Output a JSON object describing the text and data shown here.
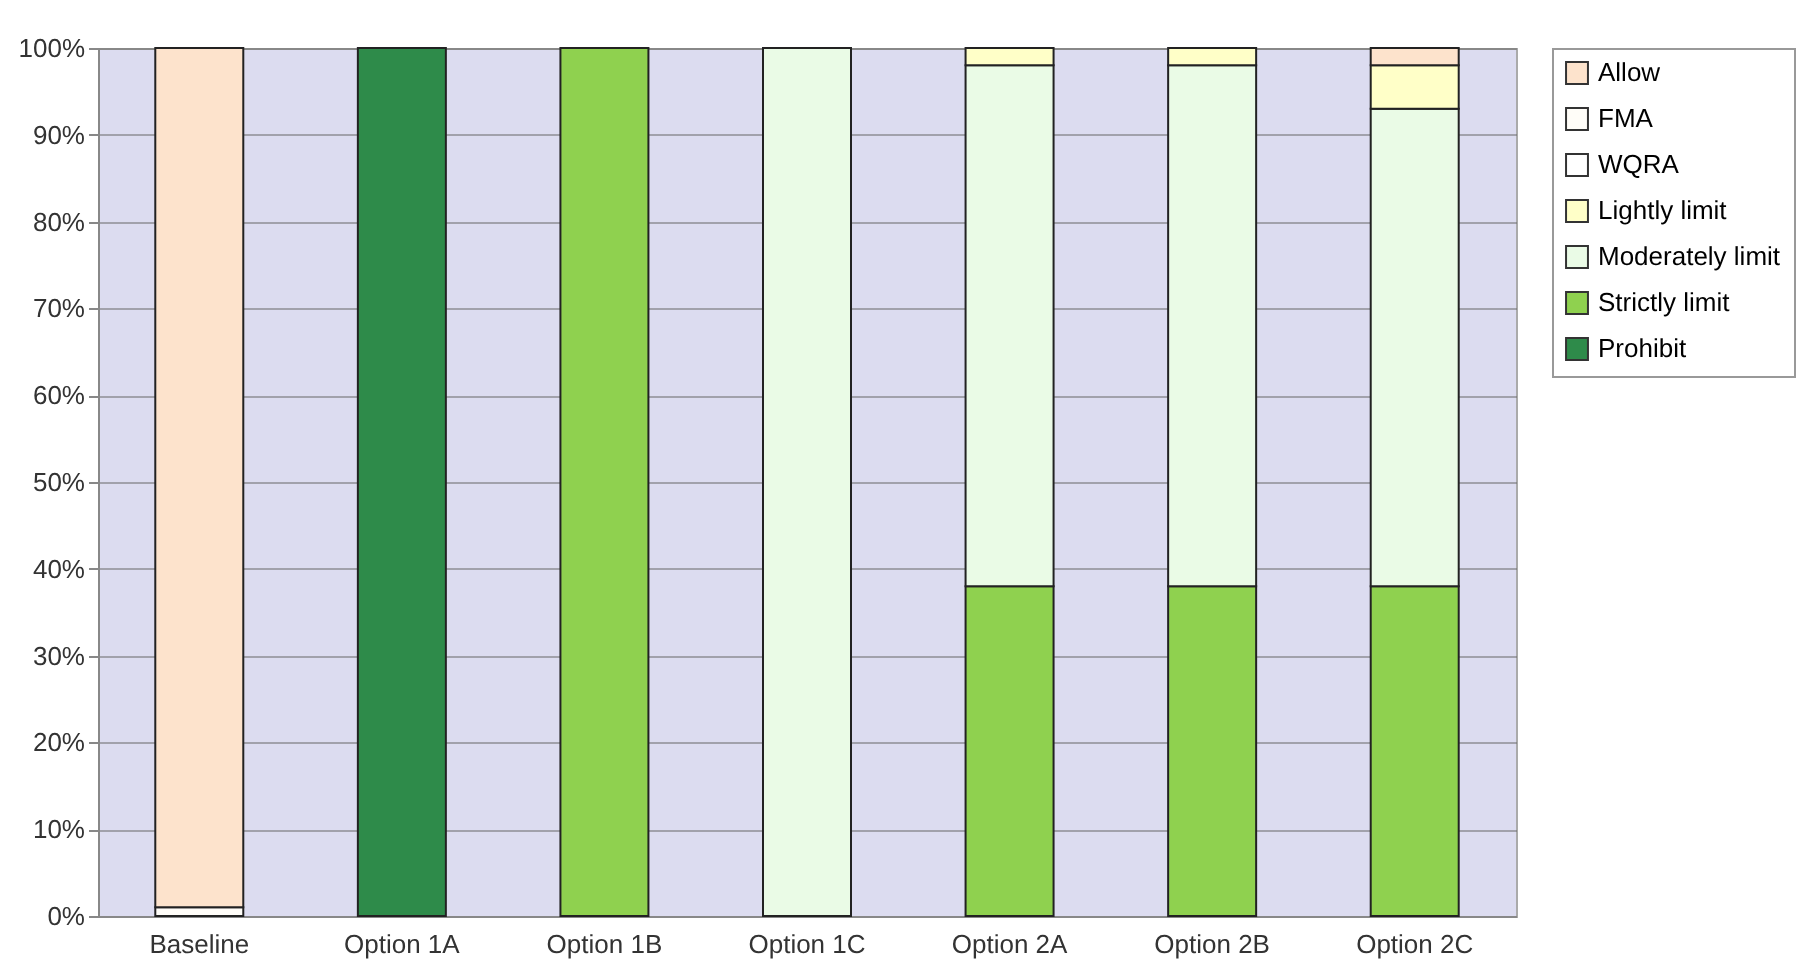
{
  "chart_data": {
    "type": "bar",
    "stacked": true,
    "categories": [
      "Baseline",
      "Option 1A",
      "Option 1B",
      "Option 1C",
      "Option 2A",
      "Option 2B",
      "Option 2C"
    ],
    "series": [
      {
        "name": "Prohibit",
        "color": "#2e8b4a",
        "values": [
          0,
          100,
          0,
          0,
          0,
          0,
          0
        ]
      },
      {
        "name": "Strictly limit",
        "color": "#8fd14f",
        "values": [
          0,
          0,
          100,
          0,
          38,
          38,
          38
        ]
      },
      {
        "name": "Moderately limit",
        "color": "#eafbe6",
        "values": [
          0,
          0,
          0,
          100,
          60,
          60,
          55
        ]
      },
      {
        "name": "Lightly limit",
        "color": "#ffffc8",
        "values": [
          0,
          0,
          0,
          0,
          2,
          2,
          5
        ]
      },
      {
        "name": "WQRA",
        "color": "#ffffff",
        "values": [
          0,
          0,
          0,
          0,
          0,
          0,
          0
        ]
      },
      {
        "name": "FMA",
        "color": "#fffdf8",
        "values": [
          1,
          0,
          0,
          0,
          0,
          0,
          0
        ]
      },
      {
        "name": "Allow",
        "color": "#fde3cc",
        "values": [
          99,
          0,
          0,
          0,
          0,
          0,
          2
        ]
      }
    ],
    "ylim": [
      0,
      100
    ],
    "yticks": [
      {
        "value": 0,
        "label": "0%"
      },
      {
        "value": 10,
        "label": "10%"
      },
      {
        "value": 20,
        "label": "20%"
      },
      {
        "value": 30,
        "label": "30%"
      },
      {
        "value": 40,
        "label": "40%"
      },
      {
        "value": 50,
        "label": "50%"
      },
      {
        "value": 60,
        "label": "60%"
      },
      {
        "value": 70,
        "label": "70%"
      },
      {
        "value": 80,
        "label": "80%"
      },
      {
        "value": 90,
        "label": "90%"
      },
      {
        "value": 100,
        "label": "100%"
      }
    ],
    "grid": "y",
    "legend": "right"
  }
}
